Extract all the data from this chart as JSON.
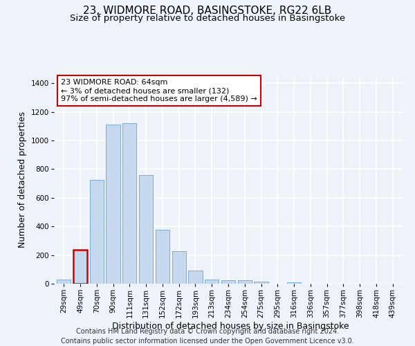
{
  "title": "23, WIDMORE ROAD, BASINGSTOKE, RG22 6LB",
  "subtitle": "Size of property relative to detached houses in Basingstoke",
  "xlabel": "Distribution of detached houses by size in Basingstoke",
  "ylabel": "Number of detached properties",
  "footer_line1": "Contains HM Land Registry data © Crown copyright and database right 2024.",
  "footer_line2": "Contains public sector information licensed under the Open Government Licence v3.0.",
  "categories": [
    "29sqm",
    "49sqm",
    "70sqm",
    "90sqm",
    "111sqm",
    "131sqm",
    "152sqm",
    "172sqm",
    "193sqm",
    "213sqm",
    "234sqm",
    "254sqm",
    "275sqm",
    "295sqm",
    "316sqm",
    "336sqm",
    "357sqm",
    "377sqm",
    "398sqm",
    "418sqm",
    "439sqm"
  ],
  "values": [
    30,
    235,
    725,
    1110,
    1120,
    760,
    375,
    225,
    90,
    30,
    25,
    22,
    15,
    0,
    10,
    0,
    0,
    0,
    0,
    0,
    0
  ],
  "bar_color": "#c5d8ed",
  "bar_edge_color": "#7aadd4",
  "highlight_bar_index": 1,
  "highlight_bar_edge_color": "#cc0000",
  "annotation_text": "23 WIDMORE ROAD: 64sqm\n← 3% of detached houses are smaller (132)\n97% of semi-detached houses are larger (4,589) →",
  "annotation_box_color": "#ffffff",
  "annotation_box_edge_color": "#cc0000",
  "ylim": [
    0,
    1450
  ],
  "yticks": [
    0,
    200,
    400,
    600,
    800,
    1000,
    1200,
    1400
  ],
  "background_color": "#eef2f9",
  "grid_color": "#ffffff",
  "title_fontsize": 11,
  "subtitle_fontsize": 9.5,
  "axis_label_fontsize": 9,
  "tick_fontsize": 7.5,
  "footer_fontsize": 7,
  "annotation_fontsize": 8
}
